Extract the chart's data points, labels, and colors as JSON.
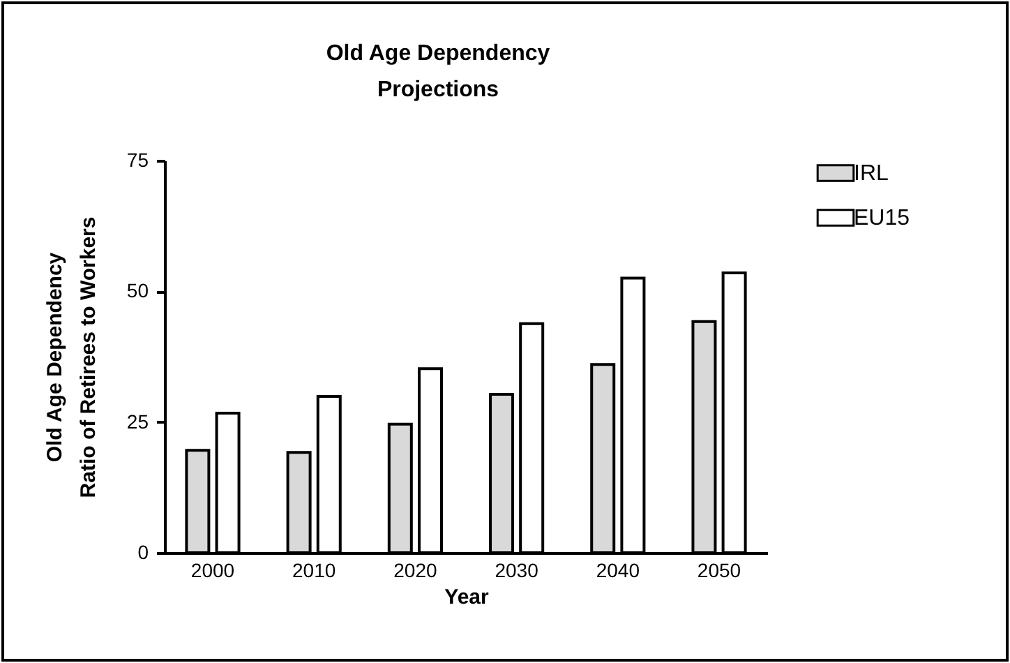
{
  "chart_data": {
    "type": "bar",
    "title": "Old Age Dependency\nProjections",
    "xlabel": "Year",
    "ylabel": "Old Age Dependency\nRatio of Retirees to Workers",
    "categories": [
      "2000",
      "2010",
      "2020",
      "2030",
      "2040",
      "2050"
    ],
    "series": [
      {
        "name": "IRL",
        "color": "#d9d9d9",
        "values": [
          19.6,
          19.2,
          24.6,
          30.3,
          36.0,
          44.2
        ]
      },
      {
        "name": "EU15",
        "color": "#ffffff",
        "values": [
          26.7,
          29.9,
          35.2,
          43.8,
          52.5,
          53.5
        ]
      }
    ],
    "ylim": [
      0,
      75
    ],
    "yticks": [
      0,
      25,
      50,
      75
    ],
    "grid": false,
    "legend": "top right"
  }
}
